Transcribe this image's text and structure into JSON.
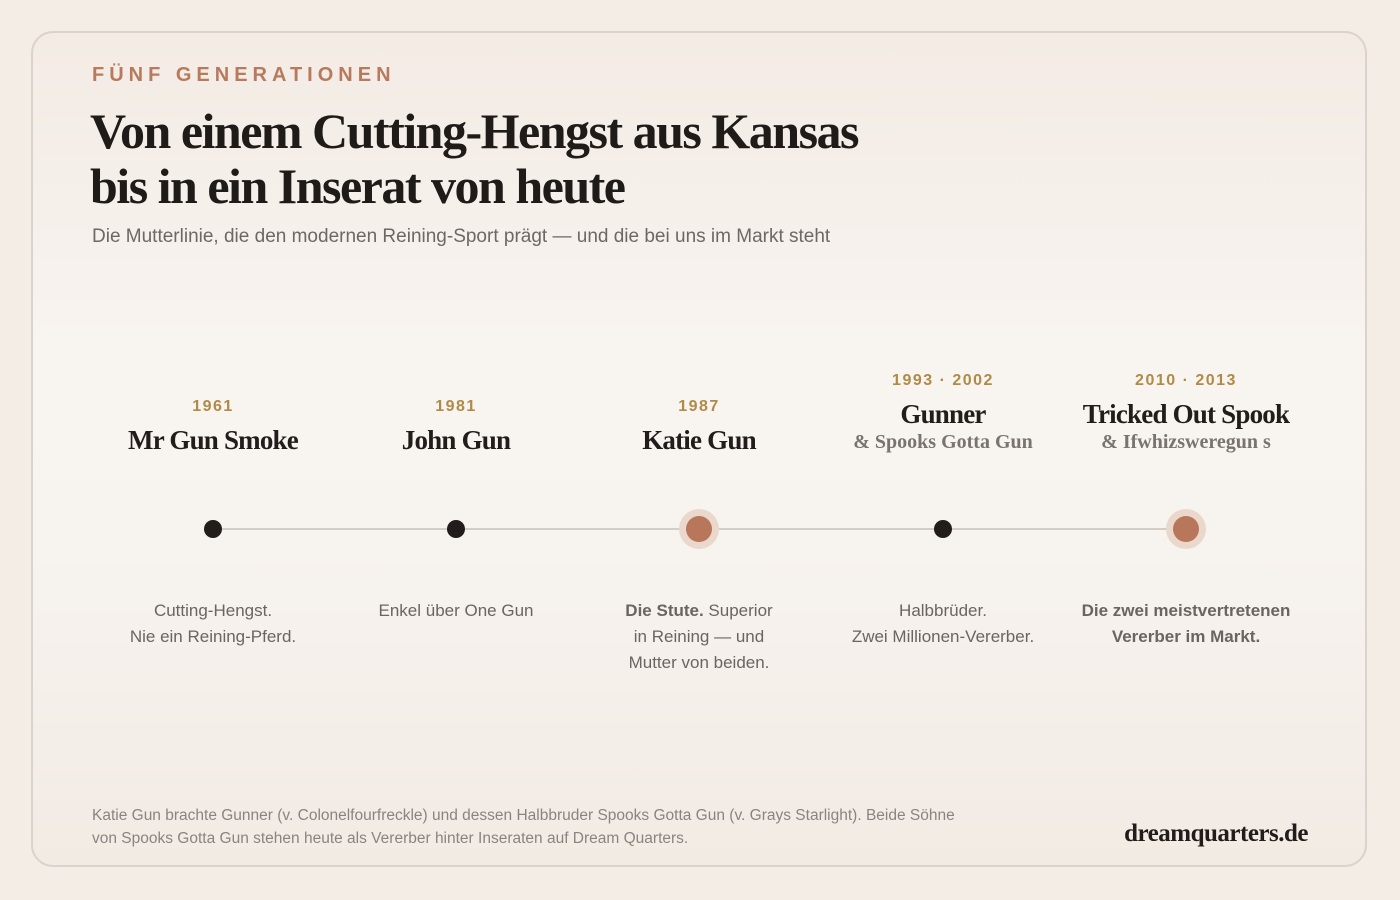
{
  "eyebrow": "FÜNF GENERATIONEN",
  "title_line1": "Von einem Cutting-Hengst aus Kansas",
  "title_line2": "bis in ein Inserat von heute",
  "subtitle": "Die Mutterlinie, die den modernen Reining-Sport prägt — und die bei uns im Markt steht",
  "colors": {
    "accent": "#b8775a",
    "year": "#b08a48",
    "eyebrow": "#b87a5c",
    "text_dark": "#221d1b"
  },
  "generations": [
    {
      "year": "1961",
      "name": "Mr Gun Smoke",
      "subname": "",
      "desc_bold": "",
      "desc_line1": "Cutting-Hengst.",
      "desc_line2": "Nie ein Reining-Pferd.",
      "desc_line3": "",
      "highlight": false
    },
    {
      "year": "1981",
      "name": "John Gun",
      "subname": "",
      "desc_bold": "",
      "desc_line1": "Enkel über One Gun",
      "desc_line2": "",
      "desc_line3": "",
      "highlight": false
    },
    {
      "year": "1987",
      "name": "Katie Gun",
      "subname": "",
      "desc_bold": "Die Stute.",
      "desc_line1": " Superior",
      "desc_line2": "in Reining — und",
      "desc_line3": "Mutter von beiden.",
      "highlight": true
    },
    {
      "year": "1993 · 2002",
      "name": "Gunner",
      "subname": "& Spooks Gotta Gun",
      "desc_bold": "",
      "desc_line1": "Halbbrüder.",
      "desc_line2": "Zwei Millionen-Vererber.",
      "desc_line3": "",
      "highlight": false
    },
    {
      "year": "2010 · 2013",
      "name": "Tricked Out Spook",
      "subname": "& Ifwhizsweregun s",
      "desc_bold": "Die zwei meistvertretenen",
      "desc_line1": "",
      "desc_line2": "Vererber im Markt.",
      "desc_line3": "",
      "highlight": true
    }
  ],
  "footnote_line1": "Katie Gun brachte Gunner (v. Colonelfourfreckle) und dessen Halbbruder Spooks Gotta Gun (v. Grays Starlight). Beide Söhne",
  "footnote_line2": "von Spooks Gotta Gun stehen heute als Vererber hinter Inseraten auf Dream Quarters.",
  "brand": "dreamquarters.de"
}
